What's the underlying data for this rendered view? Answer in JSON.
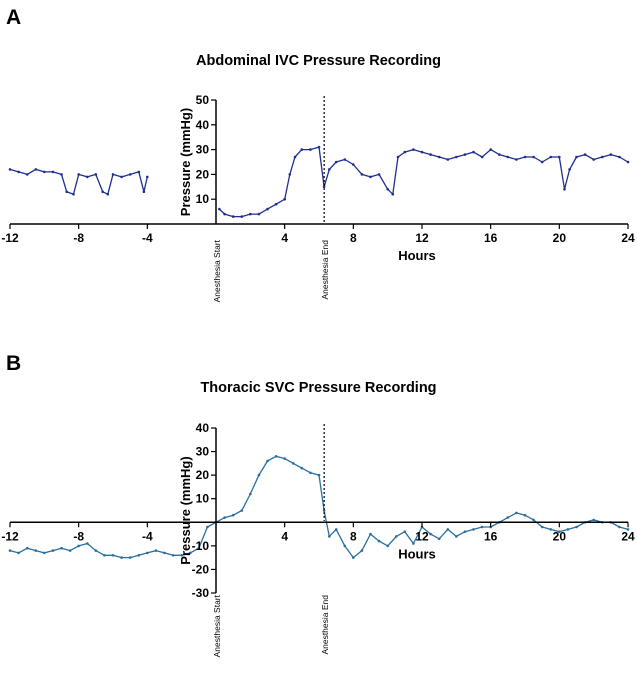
{
  "panel_a": {
    "letter": "A"
  },
  "panel_b": {
    "letter": "B"
  },
  "chart_data": [
    {
      "type": "line",
      "title": "Abdominal IVC Pressure Recording",
      "xlabel": "Hours",
      "ylabel": "Pressure (mmHg)",
      "xlim": [
        -12,
        24
      ],
      "ylim": [
        0,
        50
      ],
      "x_ticks": [
        -12,
        -8,
        -4,
        4,
        8,
        12,
        16,
        20,
        24
      ],
      "y_ticks": [
        10,
        20,
        30,
        40,
        50
      ],
      "annotations": [
        {
          "label": "Anesthesia Start",
          "x": 0
        },
        {
          "label": "Anesthesia End",
          "x": 6.3
        }
      ],
      "color": "#1f2f8f",
      "series": [
        {
          "x": [
            -12,
            -11.5,
            -11,
            -10.5,
            -10,
            -9.5,
            -9,
            -8.7,
            -8.3,
            -8,
            -7.5,
            -7,
            -6.6,
            -6.3,
            -6,
            -5.5,
            -5,
            -4.5,
            -4.2,
            -4,
            0.2,
            0.5,
            1,
            1.5,
            2,
            2.5,
            3,
            3.5,
            4,
            4.3,
            4.6,
            5,
            5.5,
            6,
            6.3,
            6.6,
            7,
            7.5,
            8,
            8.5,
            9,
            9.5,
            10,
            10.3,
            10.6,
            11,
            11.5,
            12,
            12.5,
            13,
            13.5,
            14,
            14.5,
            15,
            15.5,
            16,
            16.5,
            17,
            17.5,
            18,
            18.5,
            19,
            19.5,
            20,
            20.3,
            20.6,
            21,
            21.5,
            22,
            22.5,
            23,
            23.5,
            24
          ],
          "y": [
            22,
            21,
            20,
            22,
            21,
            21,
            20,
            13,
            12,
            20,
            19,
            20,
            13,
            12,
            20,
            19,
            20,
            21,
            13,
            19,
            6,
            4,
            3,
            3,
            4,
            4,
            6,
            8,
            10,
            20,
            27,
            30,
            30,
            31,
            15,
            22,
            25,
            26,
            24,
            20,
            19,
            20,
            14,
            12,
            27,
            29,
            30,
            29,
            28,
            27,
            26,
            27,
            28,
            29,
            27,
            30,
            28,
            27,
            26,
            27,
            27,
            25,
            27,
            27,
            14,
            22,
            27,
            28,
            26,
            27,
            28,
            27,
            25
          ]
        }
      ]
    },
    {
      "type": "line",
      "title": "Thoracic SVC Pressure Recording",
      "xlabel": "Hours",
      "ylabel": "Pressure (mmHg)",
      "xlim": [
        -12,
        24
      ],
      "ylim": [
        -30,
        40
      ],
      "x_ticks": [
        -12,
        -8,
        -4,
        4,
        8,
        12,
        16,
        20,
        24
      ],
      "y_ticks": [
        -30,
        -20,
        -10,
        10,
        20,
        30,
        40
      ],
      "annotations": [
        {
          "label": "Anesthesia Start",
          "x": 0
        },
        {
          "label": "Anesthesia End",
          "x": 6.3
        }
      ],
      "color": "#2a6f9e",
      "series": [
        {
          "x": [
            -12,
            -11.5,
            -11,
            -10.5,
            -10,
            -9.5,
            -9,
            -8.5,
            -8,
            -7.5,
            -7,
            -6.5,
            -6,
            -5.5,
            -5,
            -4.5,
            -4,
            -3.5,
            -3,
            -2.5,
            -2,
            -1.5,
            -1,
            -0.5,
            0,
            0.5,
            1,
            1.5,
            2,
            2.5,
            3,
            3.5,
            4,
            4.5,
            5,
            5.5,
            6,
            6.3,
            6.6,
            7,
            7.5,
            8,
            8.5,
            9,
            9.5,
            10,
            10.5,
            11,
            11.5,
            12,
            12.5,
            13,
            13.5,
            14,
            14.5,
            15,
            15.5,
            16,
            16.5,
            17,
            17.5,
            18,
            18.5,
            19,
            19.5,
            20,
            20.5,
            21,
            21.5,
            22,
            22.5,
            23,
            23.5,
            24
          ],
          "y": [
            -12,
            -13,
            -11,
            -12,
            -13,
            -12,
            -11,
            -12,
            -10,
            -9,
            -12,
            -14,
            -14,
            -15,
            -15,
            -14,
            -13,
            -12,
            -13,
            -14,
            -14,
            -13,
            -11,
            -2,
            0,
            2,
            3,
            5,
            12,
            20,
            26,
            28,
            27,
            25,
            23,
            21,
            20,
            5,
            -6,
            -3,
            -10,
            -15,
            -12,
            -5,
            -8,
            -10,
            -6,
            -4,
            -9,
            -2,
            -5,
            -7,
            -3,
            -6,
            -4,
            -3,
            -2,
            -2,
            0,
            2,
            4,
            3,
            1,
            -2,
            -3,
            -4,
            -3,
            -2,
            0,
            1,
            0,
            0,
            -2,
            -3
          ]
        }
      ]
    }
  ]
}
